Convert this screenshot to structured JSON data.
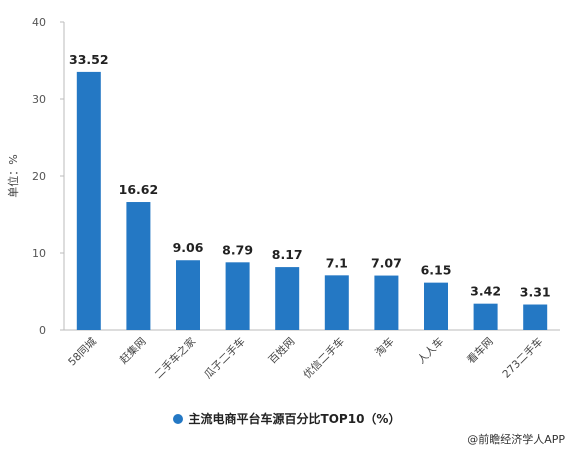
{
  "chart_data": {
    "type": "bar",
    "categories": [
      "58同城",
      "赶集网",
      "二手车之家",
      "瓜子二手车",
      "百姓网",
      "优信二手车",
      "淘车",
      "人人车",
      "看车网",
      "273二手车"
    ],
    "values": [
      33.52,
      16.62,
      9.06,
      8.79,
      8.17,
      7.1,
      7.07,
      6.15,
      3.42,
      3.31
    ],
    "value_labels": [
      "33.52",
      "16.62",
      "9.06",
      "8.79",
      "8.17",
      "7.1",
      "7.07",
      "6.15",
      "3.42",
      "3.31"
    ],
    "ylabel": "单位：%",
    "ylim": [
      0,
      40
    ],
    "yticks": [
      0,
      10,
      20,
      30,
      40
    ],
    "legend": {
      "label": "主流电商平台车源百分比TOP10（%）",
      "position": "bottom"
    },
    "grid": false,
    "colors": {
      "bar": "#2478C4",
      "axis": "#BBBBBB"
    }
  },
  "source_text": "@前瞻经济学人APP"
}
